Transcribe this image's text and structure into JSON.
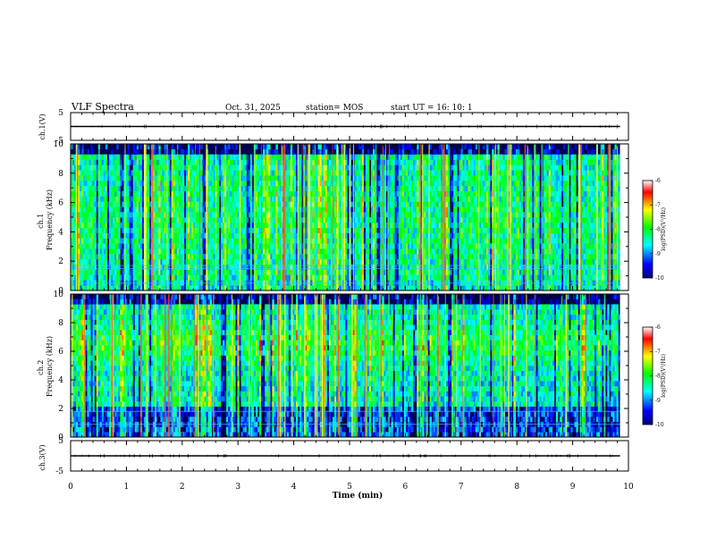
{
  "header": {
    "title": "VLF Spectra",
    "date": "Oct. 31, 2025",
    "station": "station= MOS",
    "start": "start  UT =   16: 10: 1"
  },
  "chart_data": {
    "type": "heatmap",
    "title": "VLF Spectra",
    "xlabel": "Time (min)",
    "xlim": [
      0,
      10
    ],
    "x_ticks": [
      "0",
      "1",
      "2",
      "3",
      "4",
      "5",
      "6",
      "7",
      "8",
      "9",
      "10"
    ],
    "data_end_min": 9.85,
    "panels": [
      {
        "id": "ch1-voltage",
        "kind": "line",
        "ylabel": "ch.1(V)",
        "ylim": [
          -5,
          5
        ],
        "y_ticks": [
          "5",
          "-5"
        ],
        "baseline": 0
      },
      {
        "id": "ch1-spectrogram",
        "kind": "spectrogram",
        "ylabel": "ch.1\nFrequency (kHz)",
        "ylabel_lines": [
          "ch.1",
          "Frequency (kHz)"
        ],
        "ylim": [
          0,
          10
        ],
        "y_ticks": [
          "0",
          "2",
          "4",
          "6",
          "8",
          "10"
        ],
        "intensity_range": [
          -10,
          -6
        ]
      },
      {
        "id": "ch2-spectrogram",
        "kind": "spectrogram",
        "ylabel": "ch.2\nFrequency (kHz)",
        "ylabel_lines": [
          "ch.2",
          "Frequency (kHz)"
        ],
        "ylim": [
          0,
          10
        ],
        "y_ticks": [
          "0",
          "2",
          "4",
          "6",
          "8",
          "10"
        ],
        "intensity_range": [
          -10,
          -6
        ]
      },
      {
        "id": "ch3-voltage",
        "kind": "line",
        "ylabel": "ch.3(V)",
        "ylim": [
          -5,
          5
        ],
        "y_ticks": [
          "5",
          "-5"
        ],
        "baseline": 0
      }
    ],
    "colorbar": {
      "label": "log(PSD)(V²/Hz)",
      "range": [
        -10,
        -6
      ],
      "ticks": [
        "-6",
        "-7",
        "-8",
        "-9",
        "-10"
      ],
      "colormap": [
        "#000080",
        "#0000ff",
        "#00ffff",
        "#00ff00",
        "#ffff00",
        "#ff0000",
        "#ffffff"
      ]
    }
  }
}
